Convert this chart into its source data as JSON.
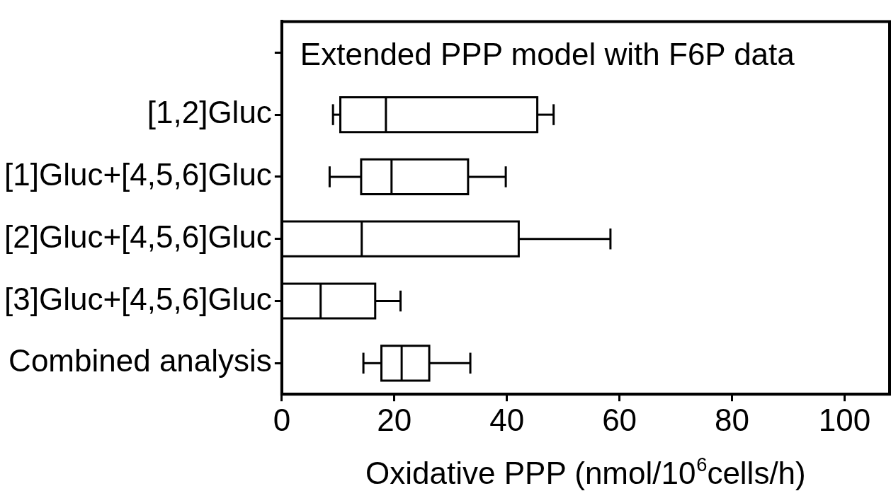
{
  "chart_data": {
    "type": "box",
    "orientation": "horizontal",
    "title": "Extended PPP model with F6P data",
    "xlabel": "Oxidative PPP (nmol/10$^{6}$cells/h)",
    "categories": [
      null,
      "[1,2]Gluc",
      "[1]Gluc+[4,5,6]Gluc",
      "[2]Gluc+[4,5,6]Gluc",
      "[3]Gluc+[4,5,6]Gluc",
      "Combined analysis"
    ],
    "boxes": [
      null,
      {
        "low": 9.1,
        "q1": 10.4,
        "median": 18.5,
        "q3": 45.4,
        "high": 48.3
      },
      {
        "low": 8.5,
        "q1": 14.1,
        "median": 19.5,
        "q3": 33.1,
        "high": 39.8
      },
      {
        "low": 0,
        "q1": 0,
        "median": 14.2,
        "q3": 42.1,
        "high": 58.4
      },
      {
        "low": 0,
        "q1": 0,
        "median": 6.9,
        "q3": 16.6,
        "high": 21.1
      },
      {
        "low": 14.5,
        "q1": 17.7,
        "median": 21.3,
        "q3": 26.2,
        "high": 33.5
      }
    ],
    "color": "#000000",
    "xlim": [
      0,
      108
    ],
    "xticks": [
      0,
      20,
      40,
      60,
      80,
      100
    ]
  }
}
